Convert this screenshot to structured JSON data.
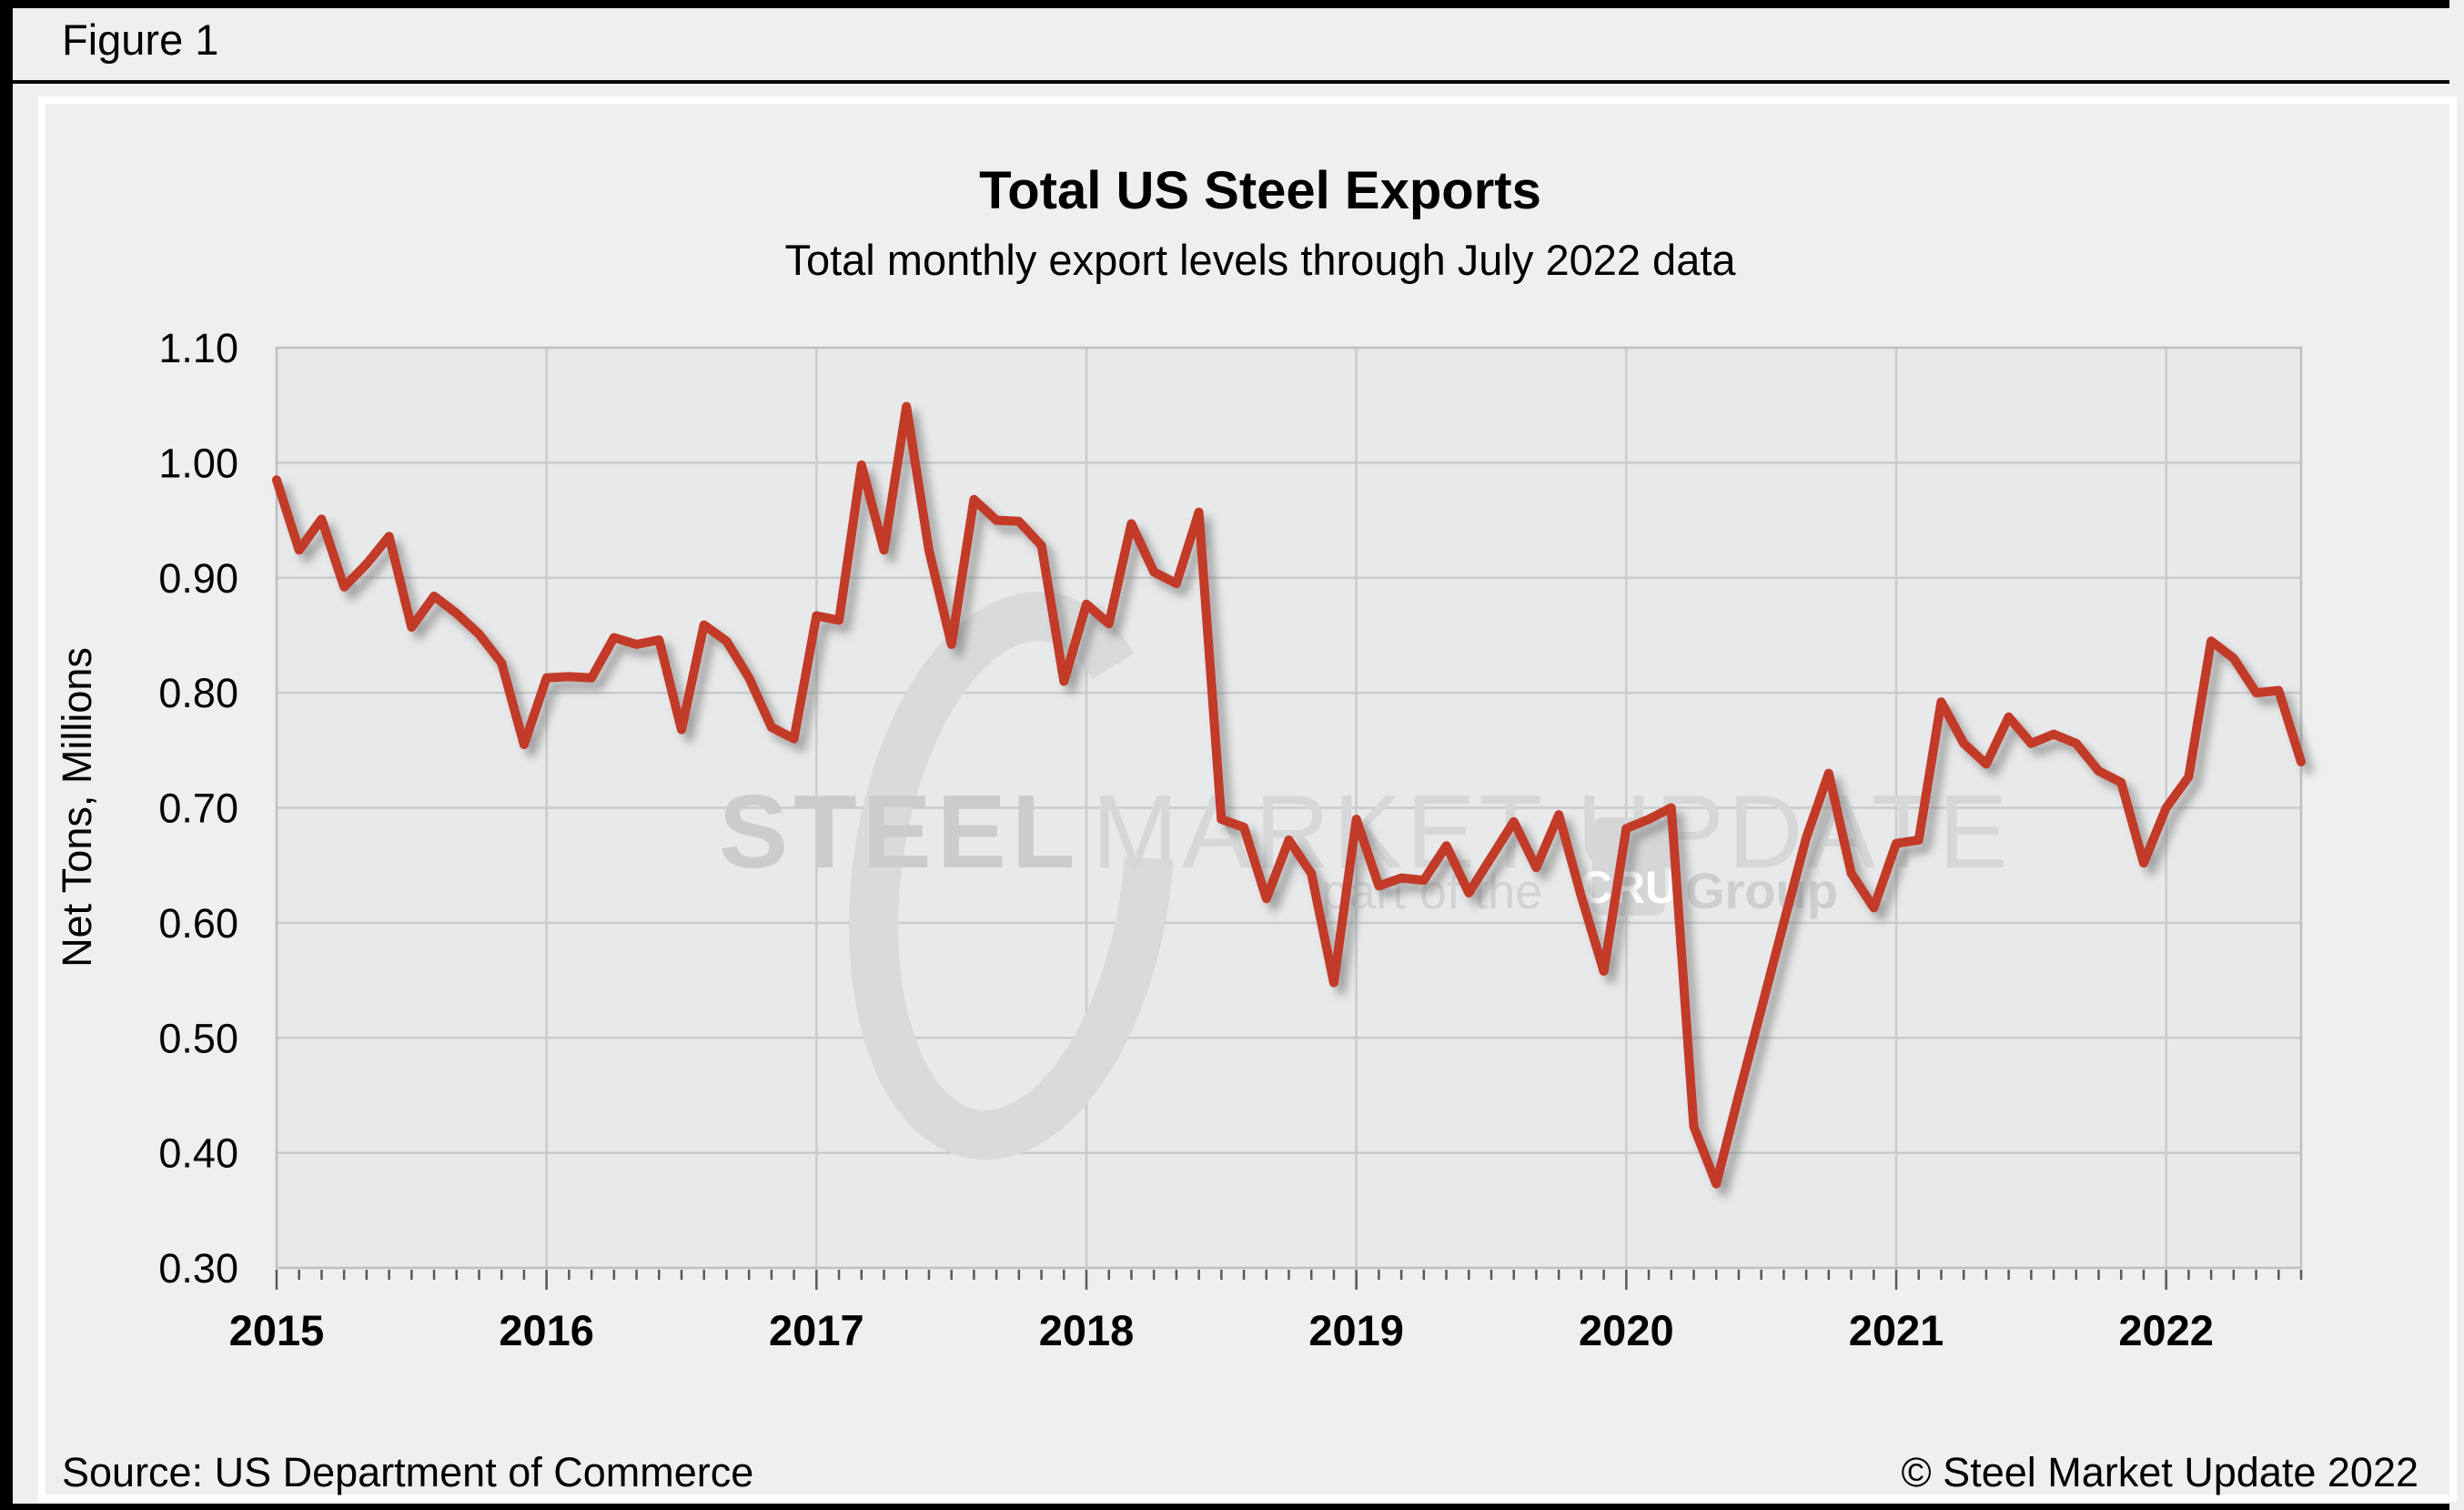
{
  "figure_label": "Figure 1",
  "chart": {
    "title": "Total US Steel Exports",
    "subtitle": "Total monthly export levels through July 2022 data",
    "ylabel": "Net Tons, Millions"
  },
  "footer": {
    "source": "Source: US Department of Commerce",
    "copyright": "© Steel Market Update 2022"
  },
  "watermark": {
    "brand_bold": "STEEL",
    "brand_light": "MARKET UPDATE",
    "tagline_prefix": "part of the",
    "tagline_box": "CRU",
    "tagline_suffix": "Group"
  },
  "chart_data": {
    "type": "line",
    "title": "Total US Steel Exports",
    "subtitle": "Total monthly export levels through July 2022 data",
    "ylabel": "Net Tons, Millions",
    "x_start": "2015-01",
    "x_end": "2022-07",
    "x_tick_labels": [
      "2015",
      "2016",
      "2017",
      "2018",
      "2019",
      "2020",
      "2021",
      "2022"
    ],
    "y_tick_labels": [
      "1.10",
      "1.00",
      "0.90",
      "0.80",
      "0.70",
      "0.60",
      "0.50",
      "0.40",
      "0.30"
    ],
    "ylim": [
      0.3,
      1.1
    ],
    "grid": true,
    "line_color": "#c23a28",
    "values": [
      0.985,
      0.924,
      0.951,
      0.892,
      0.912,
      0.936,
      0.857,
      0.884,
      0.869,
      0.851,
      0.826,
      0.755,
      0.813,
      0.814,
      0.813,
      0.848,
      0.842,
      0.846,
      0.768,
      0.859,
      0.845,
      0.813,
      0.77,
      0.76,
      0.867,
      0.863,
      0.998,
      0.924,
      1.049,
      0.924,
      0.842,
      0.968,
      0.95,
      0.949,
      0.928,
      0.81,
      0.877,
      0.86,
      0.947,
      0.905,
      0.895,
      0.957,
      0.69,
      0.683,
      0.621,
      0.672,
      0.643,
      0.548,
      0.69,
      0.632,
      0.639,
      0.637,
      0.667,
      0.626,
      0.657,
      0.688,
      0.648,
      0.694,
      0.623,
      0.558,
      0.682,
      0.69,
      0.7,
      0.423,
      0.373,
      0.45,
      0.525,
      0.6,
      0.674,
      0.73,
      0.643,
      0.613,
      0.669,
      0.672,
      0.792,
      0.756,
      0.738,
      0.779,
      0.756,
      0.764,
      0.756,
      0.732,
      0.722,
      0.652,
      0.7,
      0.727,
      0.845,
      0.83,
      0.8,
      0.802,
      0.74
    ]
  }
}
